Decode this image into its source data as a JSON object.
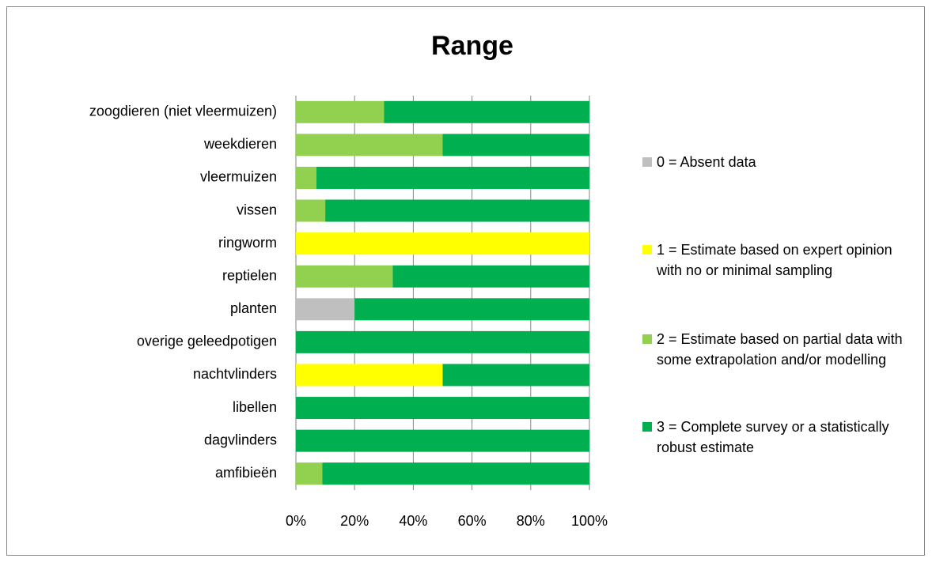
{
  "chart_data": {
    "type": "stacked-bar-horizontal",
    "title": "Range",
    "categories": [
      "zoogdieren (niet vleermuizen)",
      "weekdieren",
      "vleermuizen",
      "vissen",
      "ringworm",
      "reptielen",
      "planten",
      "overige geleedpotigen",
      "nachtvlinders",
      "libellen",
      "dagvlinders",
      "amfibieën"
    ],
    "series": [
      {
        "name": "0 = Absent data",
        "color": "#bfbfbf",
        "values": [
          0,
          0,
          0,
          0,
          0,
          0,
          20,
          0,
          0,
          0,
          0,
          0
        ]
      },
      {
        "name": "1 = Estimate based on expert opinion with no or minimal sampling",
        "color": "#ffff00",
        "values": [
          0,
          0,
          0,
          0,
          100,
          0,
          0,
          0,
          50,
          0,
          0,
          0
        ]
      },
      {
        "name": "2 = Estimate based on partial data with some extrapolation and/or modelling",
        "color": "#92d050",
        "values": [
          30,
          50,
          7,
          10,
          0,
          33,
          0,
          0,
          0,
          0,
          0,
          9
        ]
      },
      {
        "name": "3 = Complete survey or a statistically robust estimate",
        "color": "#00b050",
        "values": [
          70,
          50,
          93,
          90,
          0,
          67,
          80,
          100,
          50,
          100,
          100,
          91
        ]
      }
    ],
    "xlim": [
      0,
      100
    ],
    "xticks": [
      {
        "value": 0,
        "label": "0%"
      },
      {
        "value": 20,
        "label": "20%"
      },
      {
        "value": 40,
        "label": "40%"
      },
      {
        "value": 60,
        "label": "60%"
      },
      {
        "value": 80,
        "label": "80%"
      },
      {
        "value": 100,
        "label": "100%"
      }
    ],
    "grid": true,
    "legend": "right"
  }
}
